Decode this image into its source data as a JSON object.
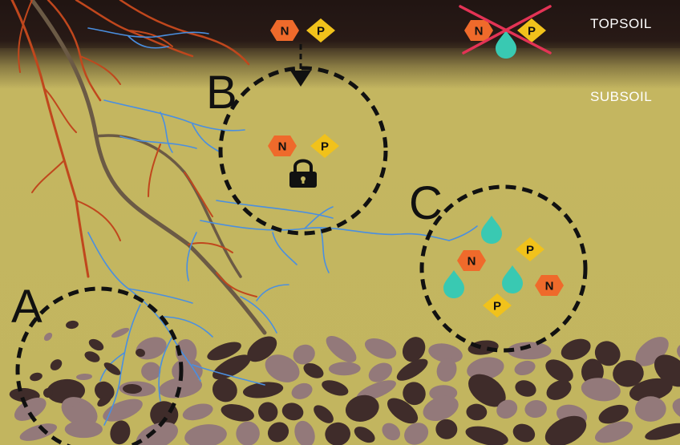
{
  "layers": {
    "topsoil": "TOPSOIL",
    "subsoil": "SUBSOIL"
  },
  "zones": {
    "a": {
      "letter": "A"
    },
    "b": {
      "letter": "B"
    },
    "c": {
      "letter": "C"
    }
  },
  "nutrients": {
    "n_label": "N",
    "p_label": "P"
  },
  "colors": {
    "topsoil": "#241614",
    "subsoil": "#c4b660",
    "nitrogen": "#ef6a2b",
    "phosphorus": "#f1c21b",
    "water": "#39c9b2",
    "fungal_hyphae": "#4a8fe0",
    "root_main": "#6b5a45",
    "root_fine": "#c0471d",
    "rock_dark": "#3f2c2a",
    "rock_light": "#93797a",
    "cross": "#e33355"
  },
  "icons": [
    "lock-icon",
    "water-droplet-icon",
    "down-arrow-icon",
    "cross-icon"
  ]
}
